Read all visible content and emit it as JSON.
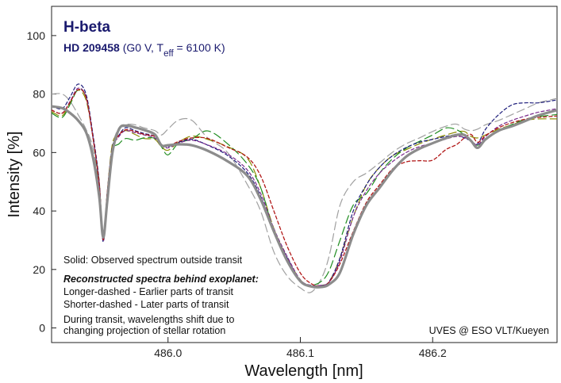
{
  "chart_data": {
    "type": "line",
    "title": "H-beta",
    "subtitle": {
      "star": "HD 209458",
      "spec_open": " (G0 V, T",
      "spec_sub": "eff",
      "spec_close": " = 6100 K)"
    },
    "xlabel": "Wavelength [nm]",
    "ylabel": "Intensity [%]",
    "xlim": [
      485.912,
      486.294
    ],
    "ylim": [
      -5,
      110
    ],
    "xticks": [
      486.0,
      486.1,
      486.2
    ],
    "xtick_labels": [
      "486.0",
      "486.1",
      "486.2"
    ],
    "yticks": [
      0,
      20,
      40,
      60,
      80,
      100
    ],
    "ytick_labels": [
      "0",
      "20",
      "40",
      "60",
      "80",
      "100"
    ],
    "annotations": {
      "solid": "Solid: Observed spectrum outside transit",
      "reconstructed_heading": "Reconstructed spectra behind exoplanet:",
      "longer": "Longer-dashed - Earlier parts of transit",
      "shorter": "Shorter-dashed - Later parts of transit",
      "shift1": "During transit, wavelengths shift due to",
      "shift2": "changing projection of stellar rotation",
      "credit": "UVES @ ESO VLT/Kueyen"
    },
    "series": [
      {
        "name": "Observed outside transit",
        "style": "solid",
        "color": "#8c8c8c",
        "width": 3.2,
        "x": [
          485.912,
          485.92,
          485.926,
          485.932,
          485.938,
          485.943,
          485.948,
          485.951,
          485.954,
          485.958,
          485.963,
          485.968,
          485.975,
          485.982,
          485.99,
          485.995,
          486.0,
          486.008,
          486.018,
          486.03,
          486.045,
          486.06,
          486.07,
          486.08,
          486.09,
          486.1,
          486.108,
          486.116,
          486.122,
          486.13,
          486.14,
          486.15,
          486.16,
          486.17,
          486.18,
          486.19,
          486.2,
          486.21,
          486.218,
          486.224,
          486.229,
          486.234,
          486.24,
          486.25,
          486.26,
          486.27,
          486.28,
          486.294
        ],
        "y": [
          75.8,
          75.2,
          73.5,
          71,
          67,
          59,
          45,
          31,
          43,
          60,
          68,
          69.2,
          68.6,
          67.7,
          66.2,
          62.5,
          62.5,
          62.8,
          62.5,
          60.6,
          57,
          52,
          44,
          33,
          23,
          16,
          14.2,
          14,
          15,
          19,
          32,
          42,
          48,
          54,
          58.6,
          61.3,
          63.2,
          64.9,
          66,
          66,
          64,
          61.6,
          64.5,
          67.5,
          69,
          70.8,
          72.7,
          74.5
        ]
      },
      {
        "name": "Earlier transit (long dash, gray)",
        "style": "longdash",
        "color": "#a0a0a0",
        "width": 1.2,
        "x": [
          485.912,
          485.92,
          485.926,
          485.932,
          485.938,
          485.943,
          485.948,
          485.951,
          485.954,
          485.958,
          485.963,
          485.968,
          485.975,
          485.982,
          485.99,
          485.995,
          486.0,
          486.008,
          486.018,
          486.03,
          486.045,
          486.06,
          486.07,
          486.08,
          486.09,
          486.1,
          486.108,
          486.116,
          486.122,
          486.13,
          486.14,
          486.15,
          486.16,
          486.17,
          486.18,
          486.19,
          486.2,
          486.21,
          486.218,
          486.224,
          486.229,
          486.234,
          486.24,
          486.25,
          486.26,
          486.27,
          486.28,
          486.294
        ],
        "y": [
          80,
          80,
          77.5,
          73,
          68,
          62,
          48,
          31,
          45,
          62,
          68.5,
          69.6,
          69.5,
          68.4,
          67.5,
          66,
          68,
          71.1,
          71,
          65,
          60,
          49,
          40,
          26,
          17.8,
          13.7,
          12.2,
          17,
          25,
          42,
          50,
          53,
          56.5,
          60.2,
          63,
          65,
          67.2,
          69,
          69.7,
          68,
          67.5,
          68,
          69.5,
          71,
          73,
          75,
          77,
          78.5
        ]
      },
      {
        "name": "Earlier transit (long dash, olive)",
        "style": "longdash",
        "color": "#8b8b00",
        "width": 1.2,
        "x": [
          485.912,
          485.92,
          485.926,
          485.932,
          485.938,
          485.943,
          485.948,
          485.951,
          485.954,
          485.958,
          485.963,
          485.968,
          485.975,
          485.982,
          485.99,
          485.995,
          486.0,
          486.008,
          486.018,
          486.03,
          486.045,
          486.06,
          486.07,
          486.08,
          486.09,
          486.1,
          486.108,
          486.116,
          486.122,
          486.13,
          486.14,
          486.15,
          486.16,
          486.17,
          486.18,
          486.19,
          486.2,
          486.21,
          486.218,
          486.224,
          486.229,
          486.234,
          486.24,
          486.25,
          486.26,
          486.27,
          486.28,
          486.294
        ],
        "y": [
          74,
          72.6,
          77.2,
          81.3,
          78,
          66,
          50,
          30,
          46,
          63,
          66,
          67.5,
          66.2,
          64.8,
          64.5,
          62,
          60.8,
          63.5,
          65.6,
          64.5,
          62,
          58,
          48,
          34,
          24,
          16.5,
          14,
          14.5,
          16,
          24,
          38,
          49,
          55,
          59,
          61,
          63,
          64.6,
          66,
          67,
          67.2,
          65.5,
          65,
          66,
          68,
          69.5,
          71,
          71.5,
          71.5
        ]
      },
      {
        "name": "Earlier transit (long dash, green)",
        "style": "longdash",
        "color": "#1e8c1e",
        "width": 1.2,
        "x": [
          485.912,
          485.92,
          485.926,
          485.932,
          485.938,
          485.943,
          485.948,
          485.951,
          485.954,
          485.958,
          485.963,
          485.968,
          485.975,
          485.982,
          485.99,
          485.995,
          486.0,
          486.008,
          486.018,
          486.03,
          486.045,
          486.06,
          486.07,
          486.08,
          486.09,
          486.1,
          486.108,
          486.116,
          486.122,
          486.13,
          486.14,
          486.15,
          486.16,
          486.17,
          486.18,
          486.19,
          486.2,
          486.21,
          486.218,
          486.224,
          486.229,
          486.234,
          486.24,
          486.25,
          486.26,
          486.27,
          486.28,
          486.294
        ],
        "y": [
          73.5,
          72,
          76.5,
          81.5,
          79,
          66,
          48,
          30,
          43,
          60,
          63,
          64.8,
          64.2,
          65,
          64.8,
          62,
          59.2,
          63.2,
          64.6,
          67.4,
          63,
          56,
          48,
          33,
          23,
          16,
          14.6,
          16,
          19.8,
          30,
          42,
          46,
          53,
          58,
          61.5,
          63.8,
          66,
          68.4,
          67.8,
          66,
          64,
          62.5,
          64.5,
          67.3,
          69.6,
          71.4,
          72.3,
          73
        ]
      },
      {
        "name": "Later transit (short dash, navy)",
        "style": "shortdash",
        "color": "#1c1c7a",
        "width": 1.2,
        "x": [
          485.912,
          485.92,
          485.926,
          485.932,
          485.938,
          485.943,
          485.948,
          485.951,
          485.954,
          485.958,
          485.963,
          485.968,
          485.975,
          485.982,
          485.99,
          485.995,
          486.0,
          486.008,
          486.018,
          486.03,
          486.045,
          486.06,
          486.07,
          486.08,
          486.09,
          486.1,
          486.108,
          486.116,
          486.122,
          486.13,
          486.14,
          486.15,
          486.16,
          486.17,
          486.18,
          486.19,
          486.2,
          486.21,
          486.218,
          486.224,
          486.229,
          486.234,
          486.24,
          486.25,
          486.26,
          486.27,
          486.28,
          486.294
        ],
        "y": [
          76,
          75,
          79,
          83.4,
          80,
          67,
          50,
          29.5,
          46,
          62,
          66,
          68.5,
          67.5,
          66.5,
          65.5,
          62.6,
          62,
          63.5,
          64.5,
          62.5,
          59,
          53,
          45,
          33,
          24,
          16,
          14.2,
          14.4,
          16,
          24,
          40,
          49,
          55,
          59,
          61.7,
          63.5,
          64.5,
          65.5,
          66,
          65,
          64,
          63,
          68,
          73,
          76.3,
          77,
          77,
          78
        ]
      },
      {
        "name": "Later transit (short dash, purple)",
        "style": "shortdash",
        "color": "#7a2a8c",
        "width": 1.2,
        "x": [
          485.912,
          485.92,
          485.926,
          485.932,
          485.938,
          485.943,
          485.948,
          485.951,
          485.954,
          485.958,
          485.963,
          485.968,
          485.975,
          485.982,
          485.99,
          485.995,
          486.0,
          486.008,
          486.018,
          486.03,
          486.045,
          486.06,
          486.07,
          486.08,
          486.09,
          486.1,
          486.108,
          486.116,
          486.122,
          486.13,
          486.14,
          486.15,
          486.16,
          486.17,
          486.18,
          486.19,
          486.2,
          486.21,
          486.218,
          486.224,
          486.229,
          486.234,
          486.24,
          486.25,
          486.26,
          486.27,
          486.28,
          486.294
        ],
        "y": [
          74.5,
          73.5,
          77.5,
          82,
          79,
          66,
          49,
          29.8,
          45,
          61,
          65.5,
          67.5,
          66.8,
          66,
          65,
          62.4,
          61.6,
          63.2,
          64.2,
          62.6,
          59.5,
          54,
          46,
          34,
          24.5,
          16.5,
          14.6,
          14.6,
          15.8,
          23,
          38,
          47,
          53,
          57,
          60,
          62,
          63.2,
          64.6,
          65.5,
          65.2,
          64,
          62.6,
          65.5,
          69,
          71,
          72.5,
          73.8,
          75
        ]
      },
      {
        "name": "Later transit (short dash, red)",
        "style": "shortdash",
        "color": "#b21a1a",
        "width": 1.3,
        "x": [
          485.912,
          485.92,
          485.926,
          485.932,
          485.938,
          485.943,
          485.948,
          485.951,
          485.954,
          485.958,
          485.963,
          485.968,
          485.975,
          485.982,
          485.99,
          485.995,
          486.0,
          486.008,
          486.018,
          486.03,
          486.045,
          486.06,
          486.07,
          486.08,
          486.09,
          486.1,
          486.108,
          486.116,
          486.122,
          486.13,
          486.14,
          486.15,
          486.16,
          486.17,
          486.18,
          486.19,
          486.2,
          486.21,
          486.218,
          486.224,
          486.229,
          486.234,
          486.24,
          486.25,
          486.26,
          486.27,
          486.28,
          486.294
        ],
        "y": [
          74.5,
          73.4,
          77.2,
          81.5,
          79,
          66,
          49,
          30.2,
          46,
          61.5,
          66,
          67.8,
          67.2,
          66.2,
          65.5,
          62.8,
          62.2,
          63.8,
          65,
          64.8,
          61.8,
          58.4,
          52,
          40,
          28,
          18.8,
          15.2,
          14.2,
          15.8,
          22,
          33,
          43,
          49,
          54.5,
          56.8,
          57.2,
          57.4,
          61,
          62.7,
          65,
          66.2,
          63.5,
          65.8,
          68.5,
          70.2,
          71.4,
          72,
          72.5
        ]
      }
    ]
  }
}
